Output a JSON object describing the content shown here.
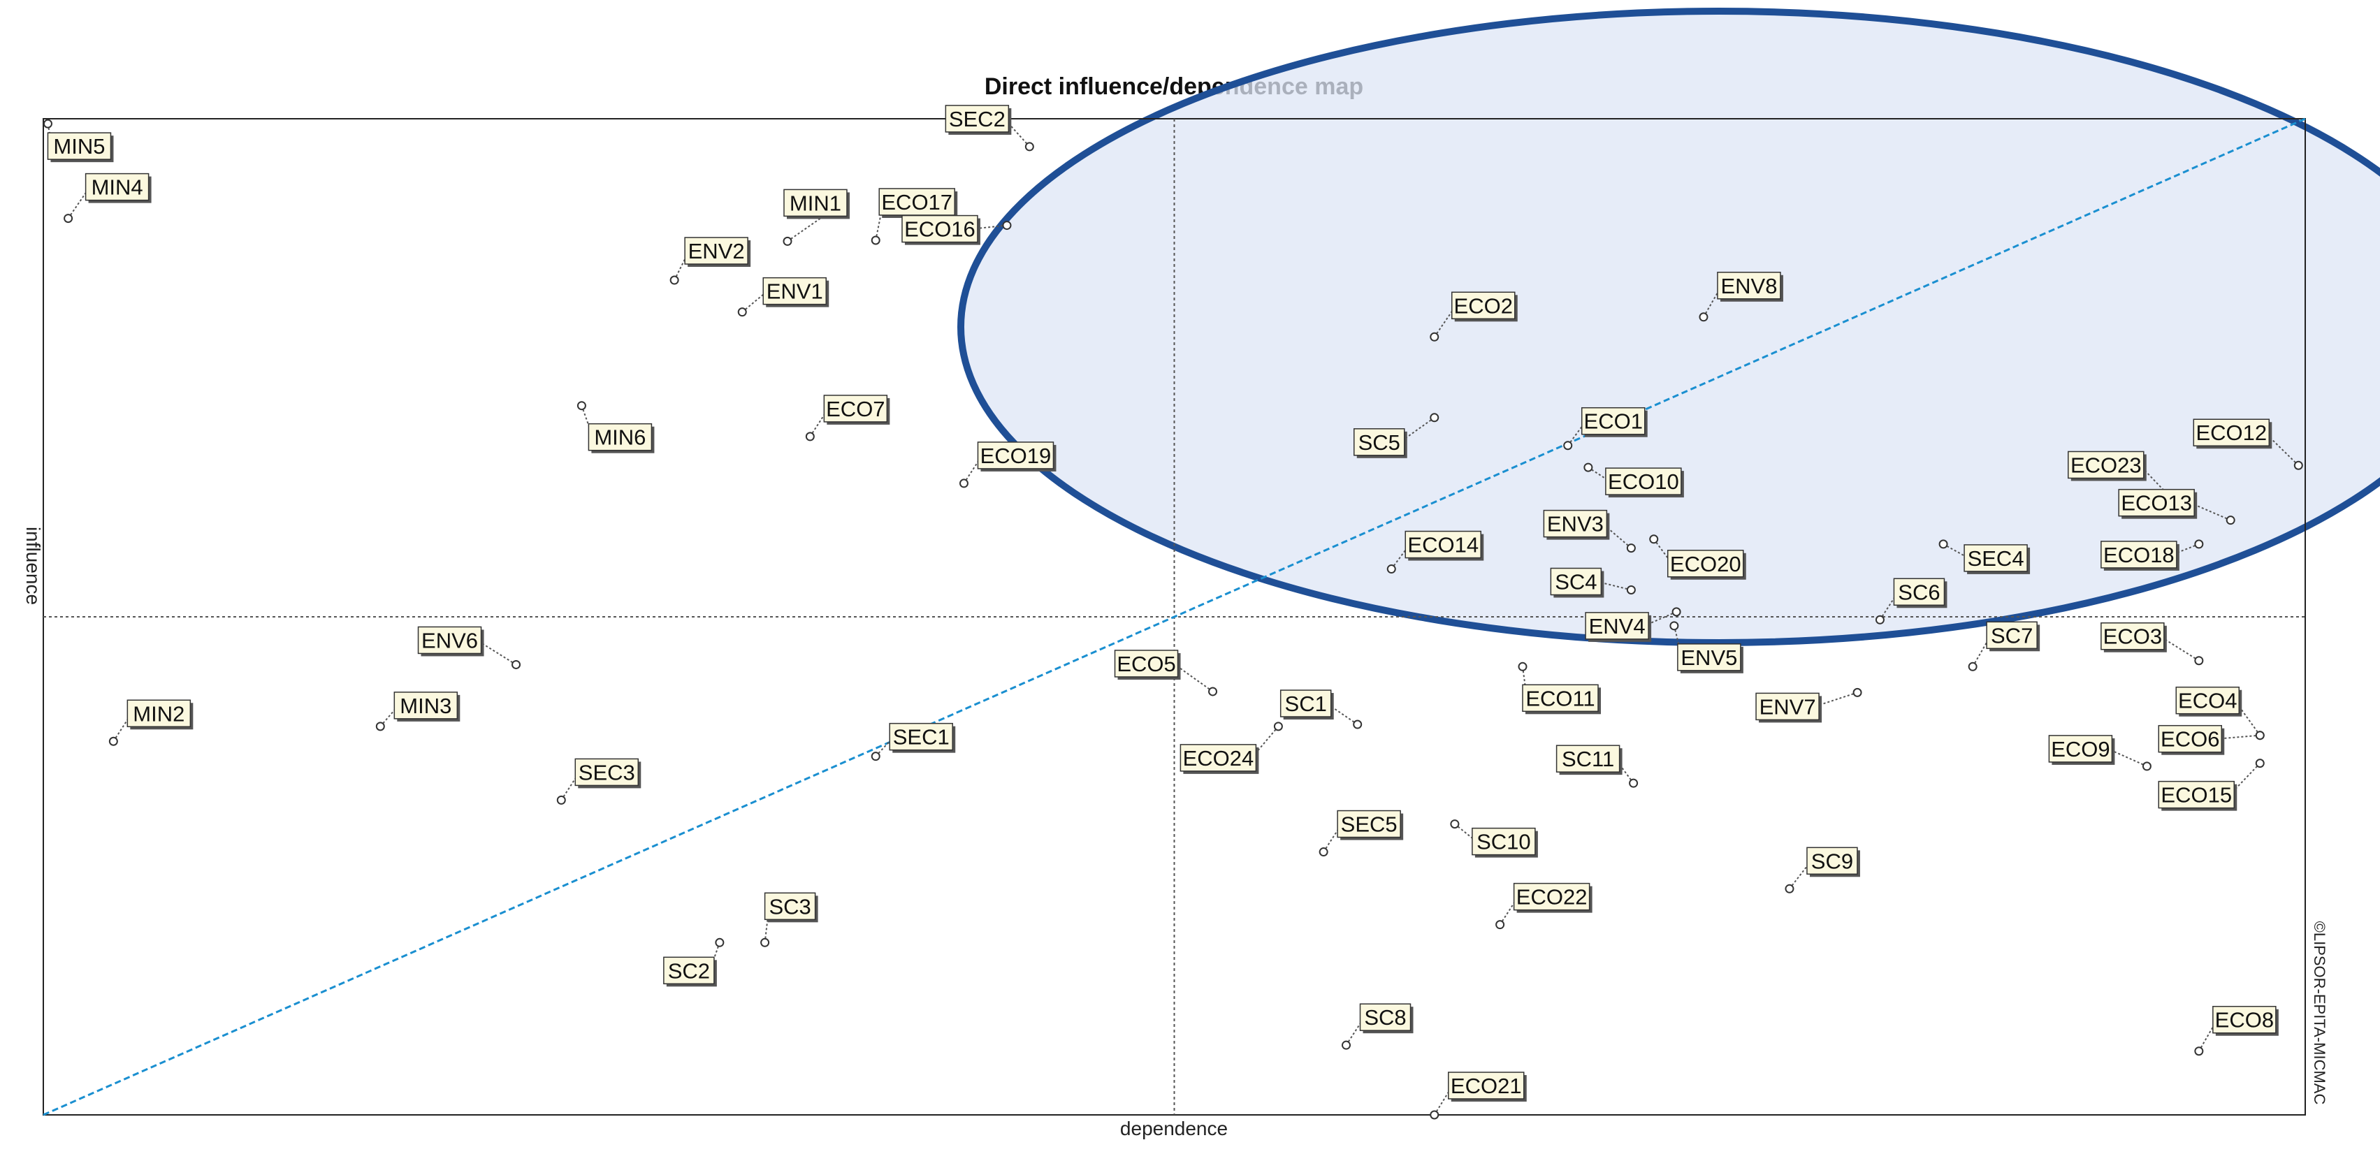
{
  "chart_data": {
    "type": "scatter",
    "title": "Direct influence/dependence map",
    "xlabel": "dependence",
    "ylabel": "influence",
    "credit": "©LIPSOR-EPITA-MICMAC",
    "xlim": [
      0,
      100
    ],
    "ylim": [
      0,
      100
    ],
    "midpoint": {
      "x": 50,
      "y": 50
    },
    "diagonal": true,
    "colors": {
      "diagonal": "#1a8fd0",
      "ellipse_stroke": "#1f4f96",
      "ellipse_fill": "#dde6f6",
      "label_bg": "#fbf8df"
    },
    "points": [
      {
        "name": "MIN5",
        "x": 0.2,
        "y": 99.5
      },
      {
        "name": "MIN4",
        "x": 1.1,
        "y": 90.0
      },
      {
        "name": "SEC2",
        "x": 43.6,
        "y": 97.2
      },
      {
        "name": "MIN1",
        "x": 32.9,
        "y": 87.7
      },
      {
        "name": "ECO17",
        "x": 36.8,
        "y": 87.8
      },
      {
        "name": "ECO16",
        "x": 42.6,
        "y": 89.3
      },
      {
        "name": "ENV2",
        "x": 27.9,
        "y": 83.8
      },
      {
        "name": "ENV1",
        "x": 30.9,
        "y": 80.6
      },
      {
        "name": "MIN6",
        "x": 23.8,
        "y": 71.2
      },
      {
        "name": "ECO7",
        "x": 33.9,
        "y": 68.1
      },
      {
        "name": "ECO19",
        "x": 40.7,
        "y": 63.4
      },
      {
        "name": "ECO2",
        "x": 61.5,
        "y": 78.1
      },
      {
        "name": "ENV8",
        "x": 73.4,
        "y": 80.1
      },
      {
        "name": "SC5",
        "x": 61.5,
        "y": 70.0
      },
      {
        "name": "ECO1",
        "x": 67.4,
        "y": 67.2
      },
      {
        "name": "ECO10",
        "x": 68.3,
        "y": 65.0
      },
      {
        "name": "ECO14",
        "x": 59.6,
        "y": 54.8
      },
      {
        "name": "ENV3",
        "x": 70.2,
        "y": 56.9
      },
      {
        "name": "ECO20",
        "x": 71.2,
        "y": 57.8
      },
      {
        "name": "SC4",
        "x": 70.2,
        "y": 52.7
      },
      {
        "name": "ENV4",
        "x": 72.2,
        "y": 50.5
      },
      {
        "name": "ENV5",
        "x": 72.1,
        "y": 49.1
      },
      {
        "name": "ECO12",
        "x": 99.7,
        "y": 65.2
      },
      {
        "name": "ECO23",
        "x": 94.0,
        "y": 62.1
      },
      {
        "name": "ECO13",
        "x": 96.7,
        "y": 59.7
      },
      {
        "name": "ECO18",
        "x": 95.3,
        "y": 57.3
      },
      {
        "name": "SEC4",
        "x": 84.0,
        "y": 57.3
      },
      {
        "name": "SC6",
        "x": 81.2,
        "y": 49.7
      },
      {
        "name": "SC7",
        "x": 85.3,
        "y": 45.0
      },
      {
        "name": "ECO3",
        "x": 95.3,
        "y": 45.6
      },
      {
        "name": "ECO4",
        "x": 98.0,
        "y": 38.1
      },
      {
        "name": "ECO9",
        "x": 93.0,
        "y": 35.0
      },
      {
        "name": "ECO6",
        "x": 98.0,
        "y": 38.1
      },
      {
        "name": "ECO15",
        "x": 98.0,
        "y": 35.3
      },
      {
        "name": "ENV7",
        "x": 80.2,
        "y": 42.4
      },
      {
        "name": "ECO11",
        "x": 65.4,
        "y": 45.0
      },
      {
        "name": "SC11",
        "x": 70.3,
        "y": 33.3
      },
      {
        "name": "ECO5",
        "x": 51.7,
        "y": 42.5
      },
      {
        "name": "SC1",
        "x": 58.1,
        "y": 39.2
      },
      {
        "name": "ECO24",
        "x": 54.6,
        "y": 39.0
      },
      {
        "name": "ENV6",
        "x": 20.9,
        "y": 45.2
      },
      {
        "name": "MIN3",
        "x": 14.9,
        "y": 39.0
      },
      {
        "name": "MIN2",
        "x": 3.1,
        "y": 37.5
      },
      {
        "name": "SEC1",
        "x": 36.8,
        "y": 36.0
      },
      {
        "name": "SEC3",
        "x": 22.9,
        "y": 31.6
      },
      {
        "name": "SEC5",
        "x": 56.6,
        "y": 26.4
      },
      {
        "name": "SC10",
        "x": 62.4,
        "y": 29.2
      },
      {
        "name": "ECO22",
        "x": 64.4,
        "y": 19.1
      },
      {
        "name": "SC9",
        "x": 77.2,
        "y": 22.7
      },
      {
        "name": "SC3",
        "x": 31.9,
        "y": 17.3
      },
      {
        "name": "SC2",
        "x": 29.9,
        "y": 17.3
      },
      {
        "name": "SC8",
        "x": 57.6,
        "y": 7.0
      },
      {
        "name": "ECO21",
        "x": 61.5,
        "y": 0.0
      },
      {
        "name": "ECO8",
        "x": 95.3,
        "y": 6.4
      }
    ]
  }
}
